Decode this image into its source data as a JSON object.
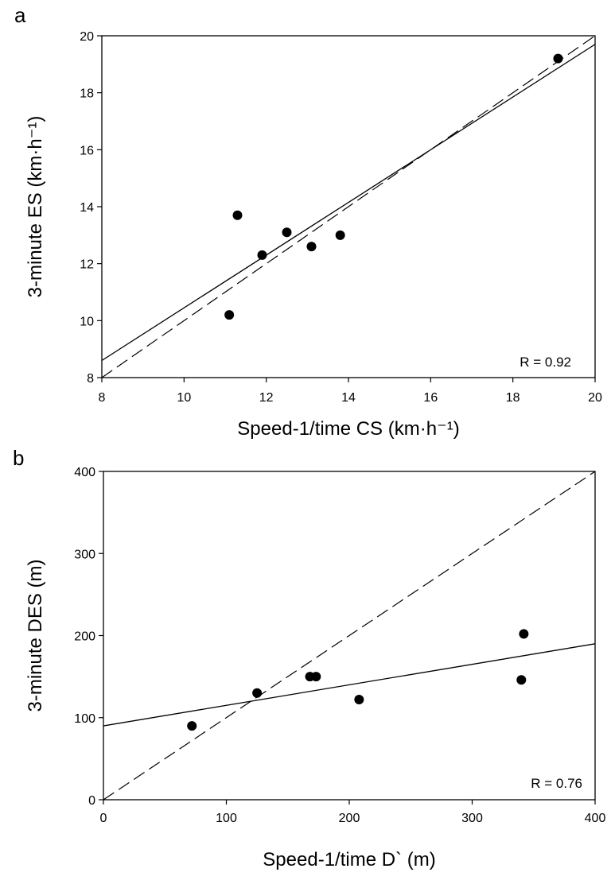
{
  "chart_data": [
    {
      "panel_label": "a",
      "type": "scatter",
      "xlabel": "Speed-1/time CS (km·h⁻¹)",
      "ylabel": "3-minute ES (km·h⁻¹)",
      "xlim": [
        8,
        20
      ],
      "ylim": [
        8,
        20
      ],
      "xticks": [
        8,
        10,
        12,
        14,
        16,
        18,
        20
      ],
      "yticks": [
        8,
        10,
        12,
        14,
        16,
        18,
        20
      ],
      "annotation": "R = 0.92",
      "points": [
        {
          "x": 11.1,
          "y": 10.2
        },
        {
          "x": 11.3,
          "y": 13.7
        },
        {
          "x": 11.9,
          "y": 12.3
        },
        {
          "x": 12.5,
          "y": 13.1
        },
        {
          "x": 13.1,
          "y": 12.6
        },
        {
          "x": 13.8,
          "y": 13.0
        },
        {
          "x": 19.1,
          "y": 19.2
        }
      ],
      "lines": [
        {
          "style": "solid",
          "from": [
            8,
            8.6
          ],
          "to": [
            20,
            19.7
          ]
        },
        {
          "style": "dashed",
          "from": [
            8,
            8
          ],
          "to": [
            20,
            20
          ]
        }
      ]
    },
    {
      "panel_label": "b",
      "type": "scatter",
      "xlabel": "Speed-1/time D` (m)",
      "ylabel": "3-minute DES (m)",
      "xlim": [
        0,
        400
      ],
      "ylim": [
        0,
        400
      ],
      "xticks": [
        0,
        100,
        200,
        300,
        400
      ],
      "yticks": [
        0,
        100,
        200,
        300,
        400
      ],
      "annotation": "R = 0.76",
      "points": [
        {
          "x": 72,
          "y": 90
        },
        {
          "x": 125,
          "y": 130
        },
        {
          "x": 168,
          "y": 150
        },
        {
          "x": 173,
          "y": 150
        },
        {
          "x": 208,
          "y": 122
        },
        {
          "x": 340,
          "y": 146
        },
        {
          "x": 342,
          "y": 202
        }
      ],
      "lines": [
        {
          "style": "solid",
          "from": [
            0,
            90
          ],
          "to": [
            400,
            190
          ]
        },
        {
          "style": "dashed",
          "from": [
            0,
            0
          ],
          "to": [
            400,
            400
          ]
        }
      ]
    }
  ]
}
